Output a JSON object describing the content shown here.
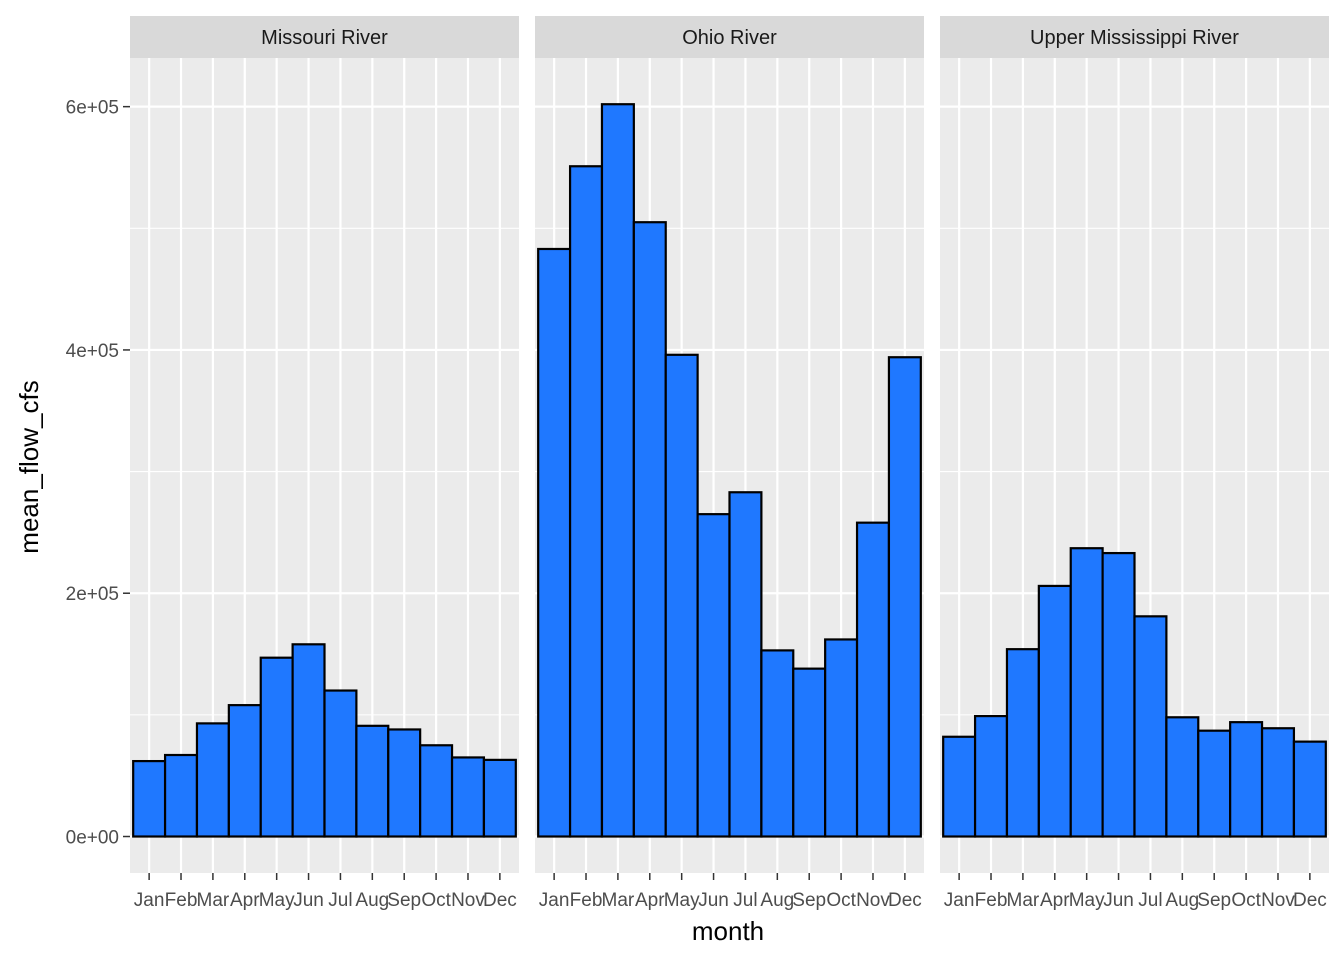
{
  "chart_data": {
    "type": "bar",
    "facet_layout": "columns",
    "xlabel": "month",
    "ylabel": "mean_flow_cfs",
    "ylim": [
      -30000,
      640000
    ],
    "yticks": [
      0,
      200000,
      400000,
      600000
    ],
    "ytick_labels": [
      "0e+00",
      "2e+05",
      "4e+05",
      "6e+05"
    ],
    "categories": [
      "Jan",
      "Feb",
      "Mar",
      "Apr",
      "May",
      "Jun",
      "Jul",
      "Aug",
      "Sep",
      "Oct",
      "Nov",
      "Dec"
    ],
    "bar_fill": "#1f78ff",
    "bar_stroke": "#000000",
    "grid": true,
    "panels": [
      {
        "name": "Missouri River",
        "values": [
          62000,
          67000,
          93000,
          108000,
          147000,
          158000,
          120000,
          91000,
          88000,
          75000,
          65000,
          63000
        ]
      },
      {
        "name": "Ohio River",
        "values": [
          483000,
          551000,
          602000,
          505000,
          396000,
          265000,
          283000,
          153000,
          138000,
          162000,
          258000,
          394000
        ]
      },
      {
        "name": "Upper Mississippi River",
        "values": [
          82000,
          99000,
          154000,
          206000,
          237000,
          233000,
          181000,
          98000,
          87000,
          94000,
          89000,
          78000
        ]
      }
    ]
  }
}
